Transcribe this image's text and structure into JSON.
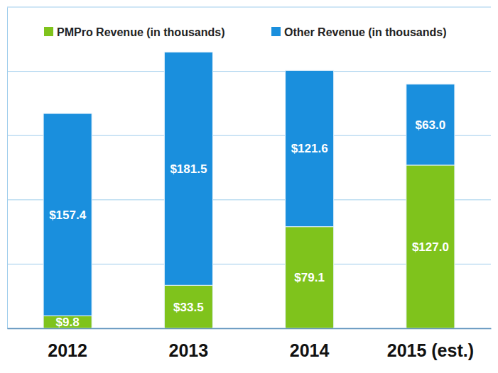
{
  "chart_data": {
    "type": "bar",
    "stacked": true,
    "categories": [
      "2012",
      "2013",
      "2014",
      "2015 (est.)"
    ],
    "series": [
      {
        "name": "PMPro Revenue (in thousands)",
        "color": "#7fc31c",
        "values": [
          9.8,
          33.5,
          79.1,
          127.0
        ],
        "value_labels": [
          "$9.8",
          "$33.5",
          "$79.1",
          "$127.0"
        ]
      },
      {
        "name": "Other Revenue (in thousands)",
        "color": "#1a8fdd",
        "values": [
          157.4,
          181.5,
          121.6,
          63.0
        ],
        "value_labels": [
          "$157.4",
          "$181.5",
          "$121.6",
          "$63.0"
        ]
      }
    ],
    "ylim": [
      0,
      250
    ],
    "yticks": [
      0,
      50,
      100,
      150,
      200,
      250
    ],
    "grid": true,
    "legend": "top",
    "data_labels": true,
    "tick_labels": "x"
  }
}
